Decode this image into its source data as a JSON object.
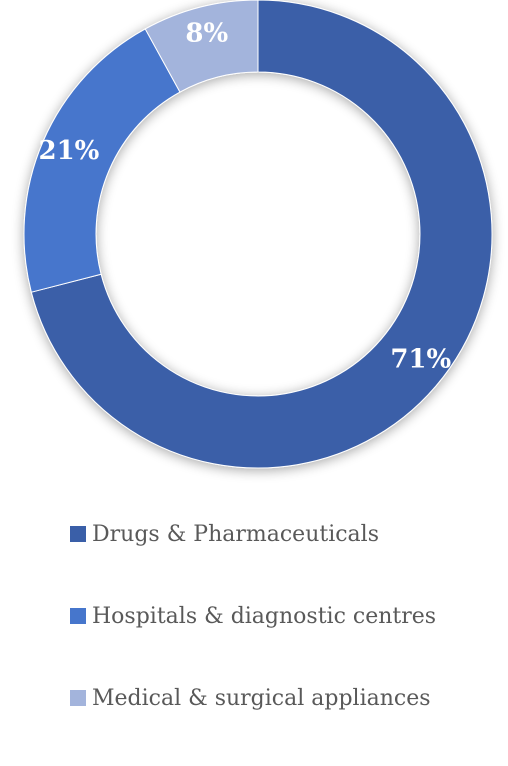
{
  "chart_data": {
    "type": "pie",
    "style": "donut",
    "categories": [
      "Drugs & Pharmaceuticals",
      "Hospitals & diagnostic centres",
      "Medical & surgical appliances"
    ],
    "values": [
      71,
      21,
      8
    ],
    "data_labels": [
      "71%",
      "21%",
      "8%"
    ],
    "colors": [
      "#3a5fa8",
      "#4676cc",
      "#a3b4dc"
    ],
    "legend": "bottom",
    "title": ""
  },
  "legend": {
    "items": [
      {
        "label": "Drugs & Pharmaceuticals",
        "color": "#3a5fa8"
      },
      {
        "label": "Hospitals & diagnostic centres",
        "color": "#4676cc"
      },
      {
        "label": "Medical & surgical appliances",
        "color": "#a3b4dc"
      }
    ]
  }
}
